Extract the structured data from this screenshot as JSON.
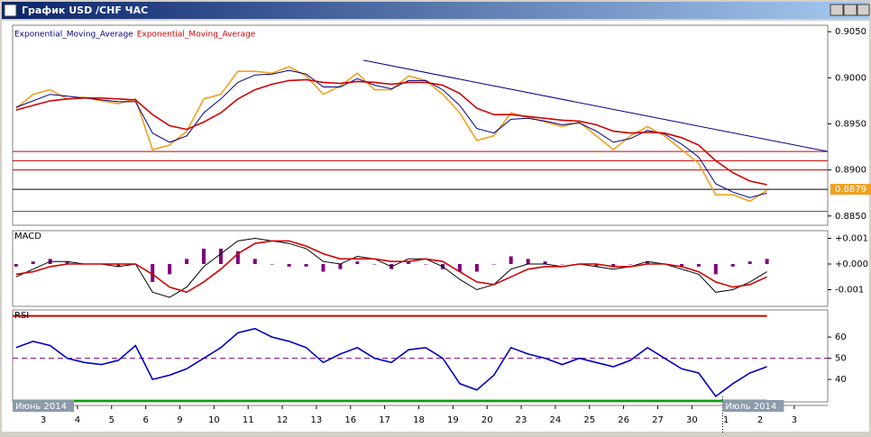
{
  "window": {
    "title": "График USD /CHF ЧАС"
  },
  "x_axis": {
    "xlim": [
      -0.9,
      22.98
    ],
    "xticks": [
      {
        "value": 0,
        "label": "3"
      },
      {
        "value": 1,
        "label": "4"
      },
      {
        "value": 2,
        "label": "5"
      },
      {
        "value": 3,
        "label": "6"
      },
      {
        "value": 4,
        "label": "9"
      },
      {
        "value": 5,
        "label": "10"
      },
      {
        "value": 6,
        "label": "11"
      },
      {
        "value": 7,
        "label": "12"
      },
      {
        "value": 8,
        "label": "13"
      },
      {
        "value": 9,
        "label": "16"
      },
      {
        "value": 10,
        "label": "17"
      },
      {
        "value": 11,
        "label": "18"
      },
      {
        "value": 12,
        "label": "19"
      },
      {
        "value": 13,
        "label": "20"
      },
      {
        "value": 14,
        "label": "23"
      },
      {
        "value": 15,
        "label": "24"
      },
      {
        "value": 16,
        "label": "25"
      },
      {
        "value": 17,
        "label": "26"
      },
      {
        "value": 18,
        "label": "27"
      },
      {
        "value": 19,
        "label": "30"
      },
      {
        "value": 20,
        "label": "1"
      },
      {
        "value": 21,
        "label": "2"
      },
      {
        "value": 22,
        "label": "3"
      }
    ],
    "periods": [
      {
        "label": "Июнь 2014",
        "x": -0.9
      },
      {
        "label": "Июль 2014",
        "x": 19.9
      }
    ]
  },
  "chart_data": [
    {
      "type": "line",
      "x": [
        -0.8,
        -0.3,
        0.2,
        0.7,
        1.2,
        1.7,
        2.2,
        2.7,
        3.2,
        3.7,
        4.2,
        4.7,
        5.2,
        5.7,
        6.2,
        6.7,
        7.2,
        7.7,
        8.2,
        8.7,
        9.2,
        9.7,
        10.2,
        10.7,
        11.2,
        11.7,
        12.2,
        12.7,
        13.2,
        13.7,
        14.2,
        14.7,
        15.2,
        15.7,
        16.2,
        16.7,
        17.2,
        17.7,
        18.2,
        18.7,
        19.2,
        19.7,
        20.2,
        20.7,
        21.2
      ],
      "ylim": [
        0.884,
        0.9057
      ],
      "yticks": [
        {
          "value": 0.905,
          "label": "0.9050"
        },
        {
          "value": 0.9,
          "label": "0.9000"
        },
        {
          "value": 0.895,
          "label": "0.8950"
        },
        {
          "value": 0.89,
          "label": "0.8900"
        },
        {
          "value": 0.885,
          "label": "0.8850"
        }
      ],
      "current_price": 0.8879,
      "levels": [
        {
          "value": 0.892,
          "color": "#c00000"
        },
        {
          "value": 0.891,
          "color": "#c00000"
        },
        {
          "value": 0.89,
          "color": "#c00000"
        },
        {
          "value": 0.8879,
          "color": "#000000"
        },
        {
          "value": 0.8855,
          "color": "#008000"
        }
      ],
      "trendline": {
        "x": [
          9.38,
          22.98
        ],
        "values": [
          0.9019,
          0.892
        ],
        "color": "#000080"
      },
      "series": [
        {
          "color": "#f0a020",
          "values": [
            0.8967,
            0.8982,
            0.8987,
            0.8977,
            0.8979,
            0.8975,
            0.8972,
            0.8977,
            0.8922,
            0.8927,
            0.8942,
            0.8977,
            0.8982,
            0.9007,
            0.9007,
            0.9005,
            0.9012,
            0.9002,
            0.8982,
            0.8991,
            0.9005,
            0.8987,
            0.8987,
            0.9002,
            0.8997,
            0.8982,
            0.8962,
            0.8932,
            0.8937,
            0.8962,
            0.8957,
            0.8952,
            0.8947,
            0.8952,
            0.8937,
            0.8922,
            0.8937,
            0.8947,
            0.8937,
            0.8922,
            0.8907,
            0.8873,
            0.8873,
            0.8866,
            0.8878
          ]
        },
        {
          "name": "Exponential_Moving_Average",
          "color": "#000080",
          "values": [
            0.8968,
            0.8975,
            0.8982,
            0.898,
            0.8978,
            0.8976,
            0.8974,
            0.8974,
            0.894,
            0.893,
            0.8937,
            0.8962,
            0.8977,
            0.8995,
            0.9003,
            0.9004,
            0.9008,
            0.9004,
            0.899,
            0.899,
            0.8999,
            0.8992,
            0.8988,
            0.8997,
            0.8997,
            0.8987,
            0.897,
            0.8945,
            0.894,
            0.8955,
            0.8956,
            0.8953,
            0.8949,
            0.8951,
            0.8942,
            0.893,
            0.8934,
            0.8943,
            0.8939,
            0.8928,
            0.8914,
            0.8885,
            0.8876,
            0.887,
            0.8875
          ]
        },
        {
          "name": "Exponential_Moving_Average",
          "color": "#d00000",
          "values": [
            0.8965,
            0.897,
            0.8975,
            0.8977,
            0.8978,
            0.8978,
            0.8977,
            0.8976,
            0.896,
            0.8948,
            0.8944,
            0.8952,
            0.8962,
            0.8977,
            0.8987,
            0.8993,
            0.8997,
            0.8998,
            0.8995,
            0.8994,
            0.8996,
            0.8995,
            0.8993,
            0.8995,
            0.8995,
            0.8992,
            0.8983,
            0.8967,
            0.896,
            0.896,
            0.8958,
            0.8956,
            0.8954,
            0.8953,
            0.8949,
            0.8942,
            0.894,
            0.8941,
            0.894,
            0.8935,
            0.8927,
            0.891,
            0.8897,
            0.8888,
            0.8884
          ]
        }
      ]
    },
    {
      "type": "line",
      "title": "MACD",
      "x": [
        -0.8,
        -0.3,
        0.2,
        0.7,
        1.2,
        1.7,
        2.2,
        2.7,
        3.2,
        3.7,
        4.2,
        4.7,
        5.2,
        5.7,
        6.2,
        6.7,
        7.2,
        7.7,
        8.2,
        8.7,
        9.2,
        9.7,
        10.2,
        10.7,
        11.2,
        11.7,
        12.2,
        12.7,
        13.2,
        13.7,
        14.2,
        14.7,
        15.2,
        15.7,
        16.2,
        16.7,
        17.2,
        17.7,
        18.2,
        18.7,
        19.2,
        19.7,
        20.2,
        20.7,
        21.2
      ],
      "ylim": [
        -0.00165,
        0.0013
      ],
      "yticks": [
        {
          "value": 0.001,
          "label": "+0.001"
        },
        {
          "value": 0,
          "label": "+0.000"
        },
        {
          "value": -0.001,
          "label": "-0.001"
        }
      ],
      "series": [
        {
          "style": "bar",
          "color": "#800080",
          "values": [
            -0.0001,
            0.0001,
            0.0002,
            0.0001,
            0,
            0,
            -0.0001,
            0,
            -0.0007,
            -0.0004,
            0.0002,
            0.0006,
            0.0006,
            0.0005,
            0.0002,
            0,
            -0.0001,
            -0.0001,
            -0.0003,
            -0.0002,
            0.0001,
            0,
            -0.0002,
            0.0001,
            0,
            -0.0002,
            -0.0003,
            -0.0003,
            0,
            0.0003,
            0.0002,
            0.0001,
            0,
            0,
            -0.0001,
            -0.0001,
            0,
            0.0001,
            0,
            -0.0001,
            -0.0001,
            -0.0004,
            -0.0001,
            0.0001,
            0.0002
          ]
        },
        {
          "color": "#000000",
          "values": [
            -0.0005,
            -0.0002,
            0.0001,
            0.0001,
            0,
            0,
            -0.0001,
            0,
            -0.0011,
            -0.0013,
            -0.0009,
            -0.0001,
            0.0004,
            0.0009,
            0.001,
            0.0009,
            0.0008,
            0.0006,
            0.0001,
            0,
            0.0003,
            0.0002,
            -0.0001,
            0.0002,
            0.0002,
            -0.0001,
            -0.0006,
            -0.001,
            -0.0008,
            -0.0002,
            0,
            0,
            -0.0001,
            0,
            -0.0001,
            -0.0002,
            -0.0001,
            0.0001,
            0,
            -0.0002,
            -0.0004,
            -0.0011,
            -0.001,
            -0.0007,
            -0.0003
          ]
        },
        {
          "color": "#d00000",
          "values": [
            -0.0004,
            -0.0003,
            -0.0001,
            0,
            0,
            0,
            0,
            0,
            -0.0004,
            -0.0009,
            -0.0011,
            -0.0007,
            -0.0002,
            0.0004,
            0.0008,
            0.0009,
            0.0009,
            0.0007,
            0.0004,
            0.0002,
            0.0002,
            0.0002,
            0.0001,
            0.0001,
            0.0002,
            0.0001,
            -0.0003,
            -0.0007,
            -0.0008,
            -0.0005,
            -0.0002,
            -0.0001,
            -0.0001,
            0,
            0,
            -0.0001,
            -0.0001,
            0,
            0,
            -0.0001,
            -0.0003,
            -0.0007,
            -0.0009,
            -0.0008,
            -0.0005
          ]
        }
      ]
    },
    {
      "type": "line",
      "title": "RSI",
      "x": [
        -0.8,
        -0.3,
        0.2,
        0.7,
        1.2,
        1.7,
        2.2,
        2.7,
        3.2,
        3.7,
        4.2,
        4.7,
        5.2,
        5.7,
        6.2,
        6.7,
        7.2,
        7.7,
        8.2,
        8.7,
        9.2,
        9.7,
        10.2,
        10.7,
        11.2,
        11.7,
        12.2,
        12.7,
        13.2,
        13.7,
        14.2,
        14.7,
        15.2,
        15.7,
        16.2,
        16.7,
        17.2,
        17.7,
        18.2,
        18.7,
        19.2,
        19.7,
        20.2,
        20.7,
        21.2
      ],
      "ylim": [
        29.4,
        72.8
      ],
      "yticks": [
        60,
        50,
        40
      ],
      "levels": [
        {
          "value": 70,
          "color": "#d00000"
        },
        {
          "value": 50,
          "color": "#800080",
          "dashed": true
        },
        {
          "value": 30,
          "color": "#00a000"
        }
      ],
      "series": [
        {
          "color": "#0000c0",
          "values": [
            55,
            58,
            56,
            50,
            48,
            47,
            49,
            56,
            40,
            42,
            45,
            50,
            55,
            62,
            64,
            60,
            58,
            55,
            48,
            52,
            55,
            50,
            48,
            54,
            55,
            50,
            38,
            35,
            42,
            55,
            52,
            50,
            47,
            50,
            48,
            46,
            49,
            55,
            50,
            45,
            43,
            32,
            38,
            43,
            46
          ]
        }
      ]
    }
  ]
}
